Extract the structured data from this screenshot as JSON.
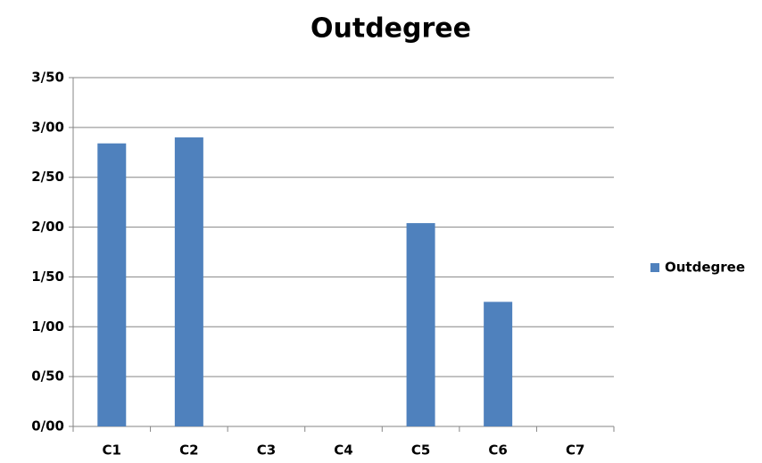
{
  "chart_data": {
    "type": "bar",
    "title": "Outdegree",
    "categories": [
      "C1",
      "C2",
      "C3",
      "C4",
      "C5",
      "C6",
      "C7"
    ],
    "series": [
      {
        "name": "Outdegree",
        "color": "#4f81bd",
        "values": [
          2.84,
          2.9,
          0,
          0,
          2.04,
          1.25,
          0
        ]
      }
    ],
    "ylim": [
      0,
      3.5
    ],
    "yticks": [
      {
        "value": 0,
        "label": "0/00"
      },
      {
        "value": 0.5,
        "label": "0/50"
      },
      {
        "value": 1,
        "label": "1/00"
      },
      {
        "value": 1.5,
        "label": "1/50"
      },
      {
        "value": 2,
        "label": "2/00"
      },
      {
        "value": 2.5,
        "label": "2/50"
      },
      {
        "value": 3,
        "label": "3/00"
      },
      {
        "value": 3.5,
        "label": "3/50"
      }
    ],
    "grid": true,
    "legend": "right"
  }
}
